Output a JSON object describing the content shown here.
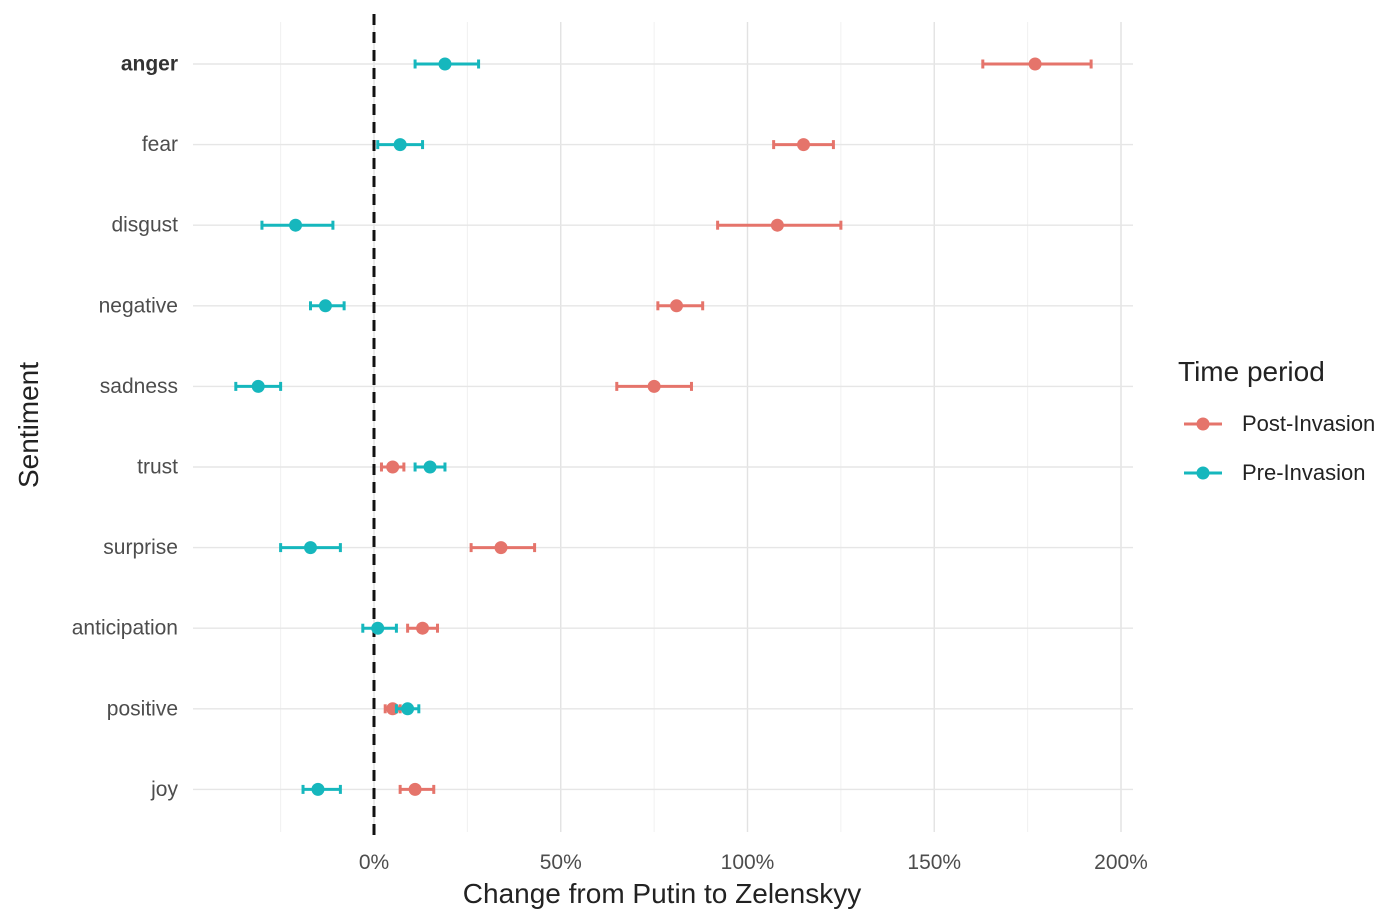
{
  "chart_data": {
    "type": "dot-errorbar",
    "xlabel": "Change from Putin to Zelenskyy",
    "ylabel": "Sentiment",
    "x_ticks": [
      0,
      50,
      100,
      150,
      200
    ],
    "x_tick_labels": [
      "0%",
      "50%",
      "100%",
      "150%",
      "200%"
    ],
    "xlim": [
      -48,
      203
    ],
    "reference_line": 0,
    "grid": true,
    "categories": [
      "anger",
      "fear",
      "disgust",
      "negative",
      "sadness",
      "trust",
      "surprise",
      "anticipation",
      "positive",
      "joy"
    ],
    "bold_categories": [
      "anger"
    ],
    "legend": {
      "title": "Time period",
      "position": "right"
    },
    "series": [
      {
        "name": "Post-Invasion",
        "color": "#e5746b",
        "points": [
          {
            "category": "anger",
            "value": 177,
            "lower": 163,
            "upper": 192
          },
          {
            "category": "fear",
            "value": 115,
            "lower": 107,
            "upper": 123
          },
          {
            "category": "disgust",
            "value": 108,
            "lower": 92,
            "upper": 125
          },
          {
            "category": "negative",
            "value": 81,
            "lower": 76,
            "upper": 88
          },
          {
            "category": "sadness",
            "value": 75,
            "lower": 65,
            "upper": 85
          },
          {
            "category": "trust",
            "value": 5,
            "lower": 2,
            "upper": 8
          },
          {
            "category": "surprise",
            "value": 34,
            "lower": 26,
            "upper": 43
          },
          {
            "category": "anticipation",
            "value": 13,
            "lower": 9,
            "upper": 17
          },
          {
            "category": "positive",
            "value": 5,
            "lower": 3,
            "upper": 7
          },
          {
            "category": "joy",
            "value": 11,
            "lower": 7,
            "upper": 16
          }
        ]
      },
      {
        "name": "Pre-Invasion",
        "color": "#16b7bd",
        "points": [
          {
            "category": "anger",
            "value": 19,
            "lower": 11,
            "upper": 28
          },
          {
            "category": "fear",
            "value": 7,
            "lower": 1,
            "upper": 13
          },
          {
            "category": "disgust",
            "value": -21,
            "lower": -30,
            "upper": -11
          },
          {
            "category": "negative",
            "value": -13,
            "lower": -17,
            "upper": -8
          },
          {
            "category": "sadness",
            "value": -31,
            "lower": -37,
            "upper": -25
          },
          {
            "category": "trust",
            "value": 15,
            "lower": 11,
            "upper": 19
          },
          {
            "category": "surprise",
            "value": -17,
            "lower": -25,
            "upper": -9
          },
          {
            "category": "anticipation",
            "value": 1,
            "lower": -3,
            "upper": 6
          },
          {
            "category": "positive",
            "value": 9,
            "lower": 6,
            "upper": 12
          },
          {
            "category": "joy",
            "value": -15,
            "lower": -19,
            "upper": -9
          }
        ]
      }
    ]
  }
}
